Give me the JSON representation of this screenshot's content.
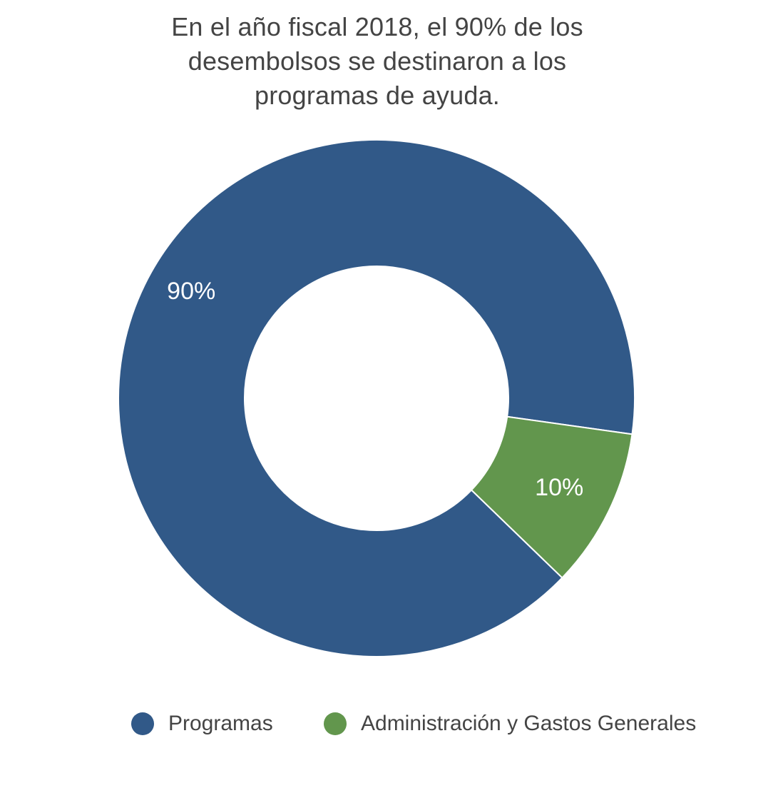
{
  "chart_data": {
    "type": "pie",
    "variant": "donut",
    "title_lines": [
      "En el año fiscal 2018, el 90% de los",
      "desembolsos se destinaron a los",
      "programas de ayuda."
    ],
    "categories": [
      "Programas",
      "Administración y Gastos Generales"
    ],
    "values": [
      90,
      10
    ],
    "data_labels": [
      "90%",
      "10%"
    ],
    "colors": [
      "#315988",
      "#62964d"
    ],
    "legend_position": "bottom"
  }
}
